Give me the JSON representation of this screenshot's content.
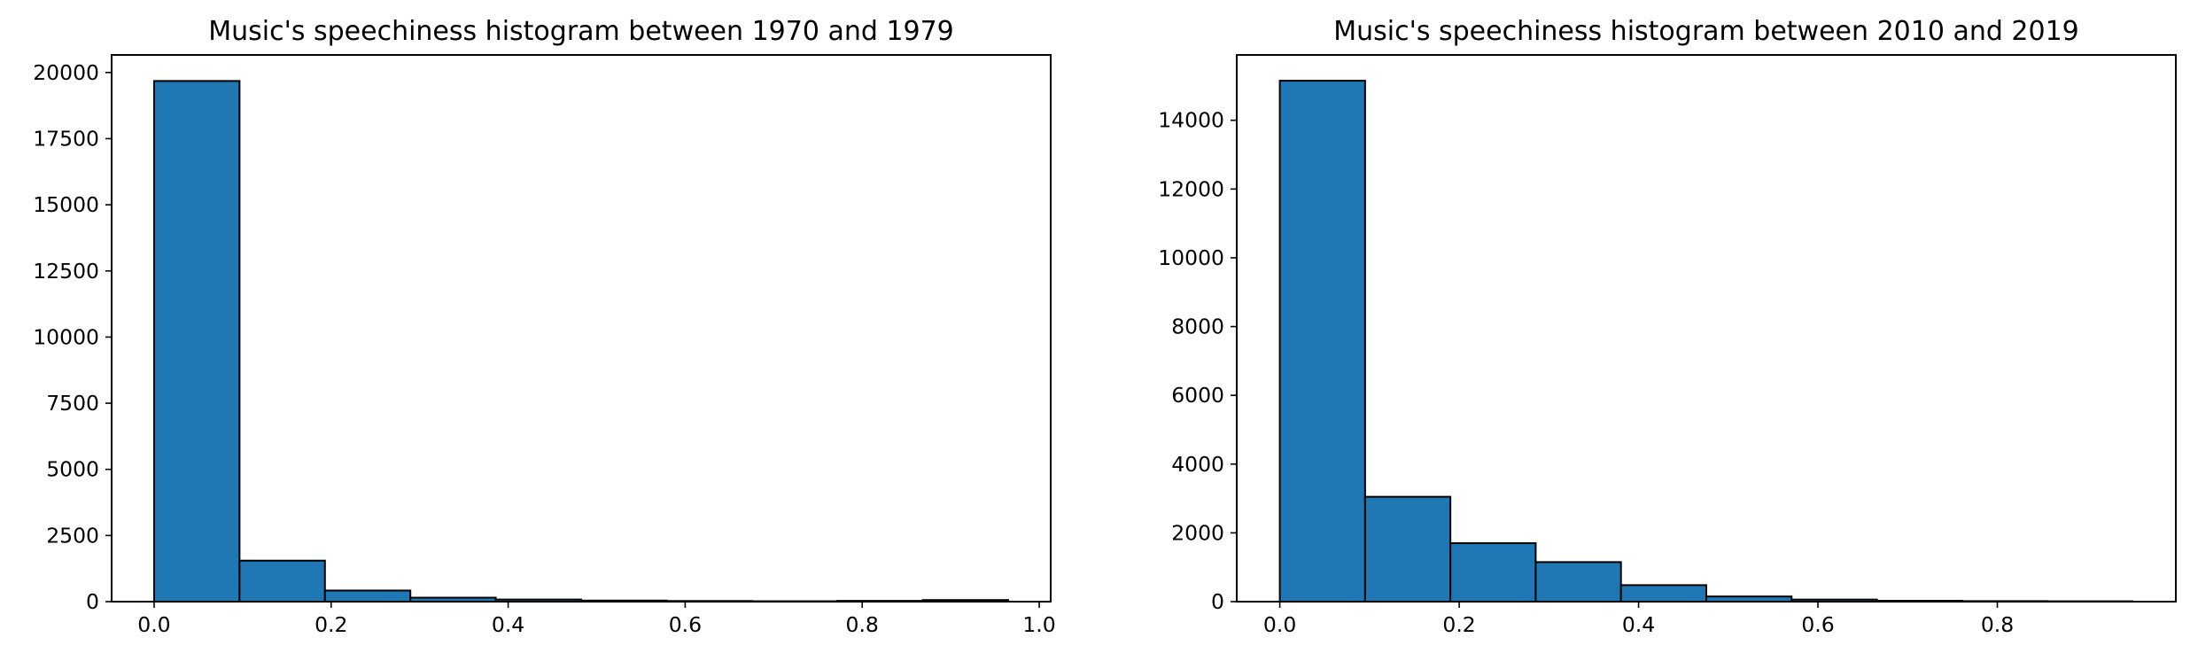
{
  "chart_data": [
    {
      "type": "bar",
      "title": "Music's speechiness histogram between 1970 and 1979",
      "xlabel": "",
      "ylabel": "",
      "bin_edges": [
        0.0,
        0.0965,
        0.193,
        0.2895,
        0.386,
        0.4825,
        0.579,
        0.6755,
        0.772,
        0.8685,
        0.965
      ],
      "values": [
        19680,
        1550,
        420,
        150,
        80,
        40,
        25,
        15,
        30,
        60
      ],
      "xlim": [
        -0.048,
        1.013
      ],
      "ylim": [
        0,
        20664
      ],
      "xticks": [
        0.0,
        0.2,
        0.4,
        0.6,
        0.8,
        1.0
      ],
      "xtick_labels": [
        "0.0",
        "0.2",
        "0.4",
        "0.6",
        "0.8",
        "1.0"
      ],
      "yticks": [
        0,
        2500,
        5000,
        7500,
        10000,
        12500,
        15000,
        17500,
        20000
      ],
      "ytick_labels": [
        "0",
        "2500",
        "5000",
        "7500",
        "10000",
        "12500",
        "15000",
        "17500",
        "20000"
      ],
      "grid": false,
      "bar_color": "#1f77b4",
      "edge_color": "#000000"
    },
    {
      "type": "bar",
      "title": "Music's speechiness histogram between 2010 and 2019",
      "xlabel": "",
      "ylabel": "",
      "bin_edges": [
        0.0,
        0.0951,
        0.1902,
        0.2853,
        0.3804,
        0.4755,
        0.5706,
        0.6657,
        0.7608,
        0.8559,
        0.951
      ],
      "values": [
        15150,
        3050,
        1700,
        1150,
        480,
        150,
        60,
        25,
        15,
        10
      ],
      "xlim": [
        -0.048,
        0.999
      ],
      "ylim": [
        0,
        15900
      ],
      "xticks": [
        0.0,
        0.2,
        0.4,
        0.6,
        0.8
      ],
      "xtick_labels": [
        "0.0",
        "0.2",
        "0.4",
        "0.6",
        "0.8"
      ],
      "yticks": [
        0,
        2000,
        4000,
        6000,
        8000,
        10000,
        12000,
        14000
      ],
      "ytick_labels": [
        "0",
        "2000",
        "4000",
        "6000",
        "8000",
        "10000",
        "12000",
        "14000"
      ],
      "grid": false,
      "bar_color": "#1f77b4",
      "edge_color": "#000000"
    }
  ]
}
